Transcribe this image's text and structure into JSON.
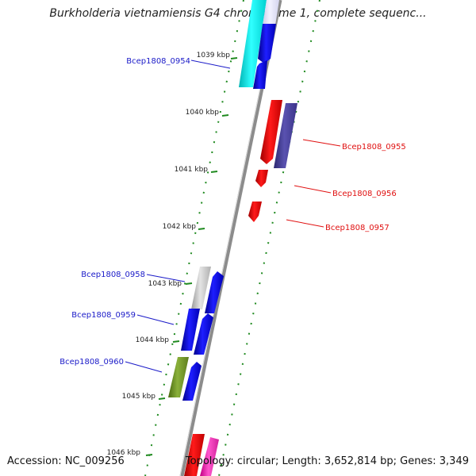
{
  "title": "Burkholderia vietnamiensis G4 chromosome 1, complete sequenc...",
  "footer": {
    "accession": "Accession: NC_009256",
    "summary": "Topology: circular; Length: 3,652,814 bp; Genes: 3,349"
  },
  "colors": {
    "backbone": "#8c8c8c",
    "ruler": "#1f8a1f",
    "forward_label": "#1a1ac8",
    "reverse_label": "#e01010"
  },
  "ticks": [
    "1039 kbp",
    "1040 kbp",
    "1041 kbp",
    "1042 kbp",
    "1043 kbp",
    "1044 kbp",
    "1045 kbp",
    "1046 kbp"
  ],
  "genes": [
    {
      "label": "Bcep1808_0954",
      "strand": "forward"
    },
    {
      "label": "Bcep1808_0955",
      "strand": "reverse"
    },
    {
      "label": "Bcep1808_0956",
      "strand": "reverse"
    },
    {
      "label": "Bcep1808_0957",
      "strand": "reverse"
    },
    {
      "label": "Bcep1808_0958",
      "strand": "forward"
    },
    {
      "label": "Bcep1808_0959",
      "strand": "forward"
    },
    {
      "label": "Bcep1808_0960",
      "strand": "forward"
    }
  ]
}
